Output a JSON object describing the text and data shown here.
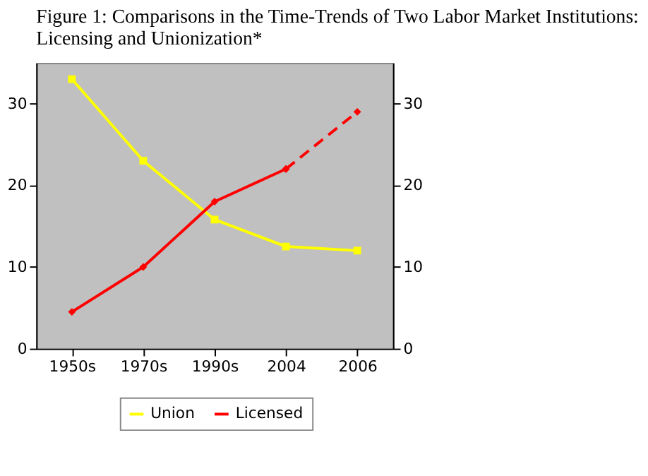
{
  "chart_data": {
    "type": "line",
    "title": [
      "Figure 1: Comparisons in the Time-Trends of Two Labor Market Institutions:",
      "Licensing and Unionization*"
    ],
    "categories": [
      "1950s",
      "1970s",
      "1990s",
      "2004",
      "2006"
    ],
    "series": [
      {
        "name": "Union",
        "color": "#ffff00",
        "values": [
          33,
          23,
          15.8,
          12.5,
          12
        ],
        "marker": "square",
        "line_style": "solid"
      },
      {
        "name": "Licensed",
        "color": "#ff0000",
        "values": [
          4.5,
          10,
          18,
          22,
          null
        ],
        "marker": "diamond",
        "line_style": "solid"
      },
      {
        "color": "#ff0000",
        "values": [
          null,
          null,
          null,
          22,
          29
        ],
        "marker": "diamond",
        "line_style": "dashed"
      }
    ],
    "ylim": [
      0,
      35
    ],
    "yticks": [
      0,
      10,
      20,
      30
    ],
    "y2lim": [
      0,
      35
    ],
    "y2ticks": [
      0,
      10,
      20,
      30
    ],
    "grid": false,
    "legend": "bottom"
  }
}
